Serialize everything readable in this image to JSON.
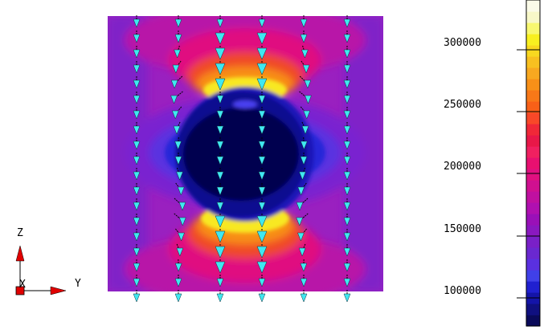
{
  "axes": {
    "z_label": "Z",
    "x_label": "X",
    "y_label": "Y"
  },
  "colorbar": {
    "tick_labels": [
      "300000",
      "250000",
      "200000",
      "150000",
      "100000"
    ],
    "tick_values": [
      300000,
      250000,
      200000,
      150000,
      100000
    ],
    "min": 80000,
    "max": 340000,
    "colors": [
      "#0a0a5a",
      "#101080",
      "#1414a8",
      "#2020d0",
      "#4040e8",
      "#5a30e0",
      "#6a28d0",
      "#7a20c8",
      "#8a18c0",
      "#9a10b8",
      "#b010b0",
      "#c010a0",
      "#d01090",
      "#e01080",
      "#e81070",
      "#f02060",
      "#e81848",
      "#f02838",
      "#f84828",
      "#f86018",
      "#f87818",
      "#f89018",
      "#f8a820",
      "#f8c020",
      "#f8d820",
      "#f8f020",
      "#f8f870",
      "#f8f8c8",
      "#fbfbe8"
    ]
  },
  "colors": {
    "field_bg": "#9028c0",
    "vector": "#40e8f0",
    "axis_arrow": "#e00000"
  }
}
